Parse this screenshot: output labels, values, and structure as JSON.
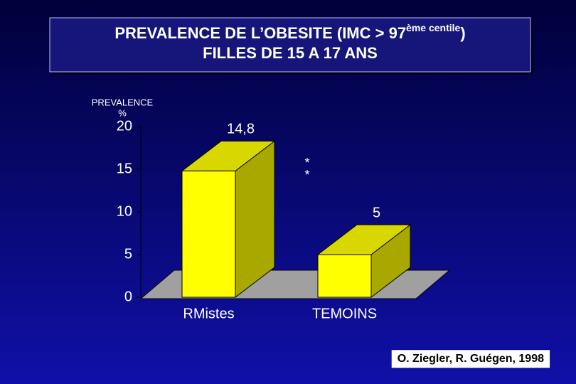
{
  "chart_data": {
    "type": "bar3d",
    "title": "PREVALENCE DE L’OBESITE (IMC > 97",
    "title_superscript": "ème centile",
    "title_end": ")",
    "subtitle": "FILLES DE 15 A 17 ANS",
    "ylabel": "PREVALENCE",
    "yunit": "%",
    "categories": [
      "RMistes",
      "TEMOINS"
    ],
    "values": [
      14.8,
      5
    ],
    "value_labels": [
      "14,8",
      "5"
    ],
    "color": "#ffff00",
    "ylim": [
      0,
      20
    ],
    "yticks": [
      0,
      5,
      10,
      15,
      20
    ],
    "annotations": [
      "*",
      "*"
    ],
    "source": "O. Ziegler, R. Guégen, 1998"
  }
}
